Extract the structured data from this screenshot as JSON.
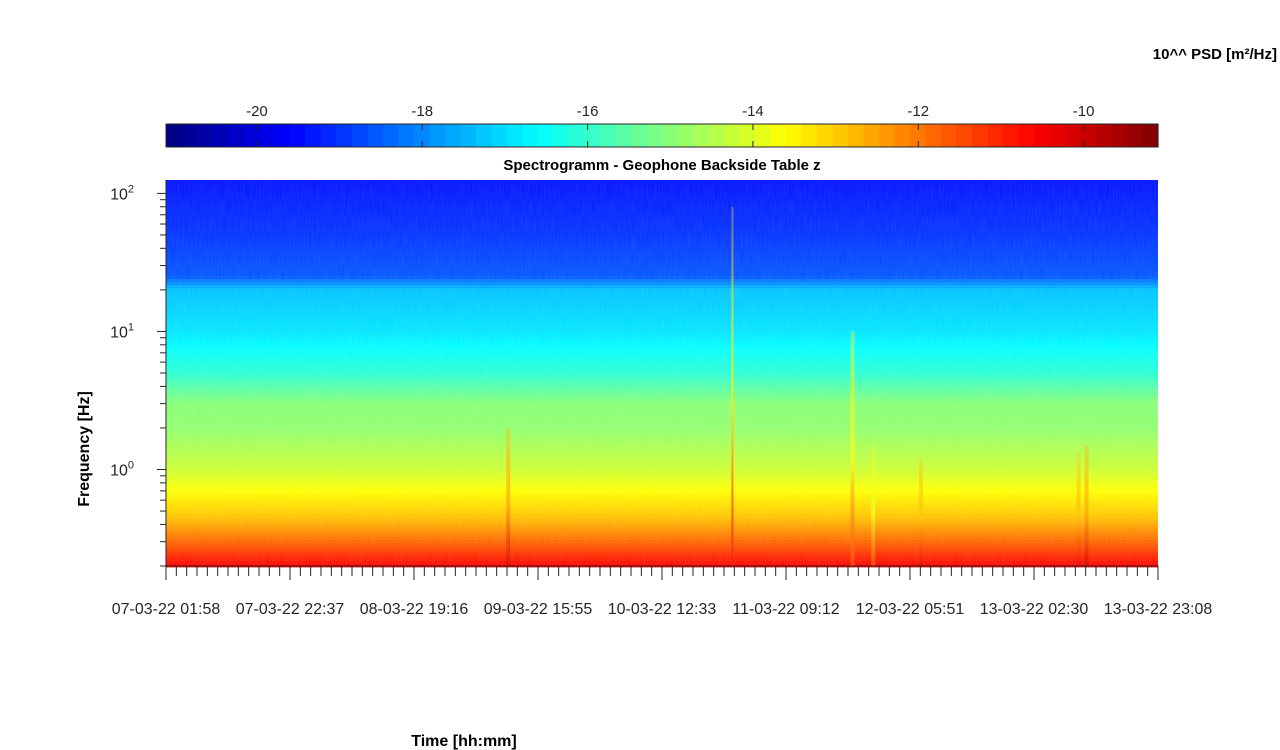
{
  "chart_data": {
    "type": "heatmap",
    "title": "Spectrogramm - Geophone Backside Table z",
    "xlabel": "Time [hh:mm]",
    "ylabel": "Frequency [Hz]",
    "colorbar_label": "10^^ PSD [m²/Hz]",
    "colormap": "jet",
    "colorbar_range": [
      -21.1,
      -9.1
    ],
    "colorbar_ticks": [
      "-20",
      "-18",
      "-16",
      "-14",
      "-12",
      "-10"
    ],
    "y_scale": "log",
    "ylim": [
      0.2,
      125
    ],
    "y_ticks": [
      {
        "base": "10",
        "exp": "2"
      },
      {
        "base": "10",
        "exp": "1"
      },
      {
        "base": "10",
        "exp": "0"
      }
    ],
    "x_ticks": [
      "07-03-22  01:58",
      "07-03-22  22:37",
      "08-03-22  19:16",
      "09-03-22  15:55",
      "10-03-22  12:33",
      "11-03-22  09:12",
      "12-03-22  05:51",
      "13-03-22  02:30",
      "13-03-22  23:08"
    ],
    "background_levels": [
      {
        "freq_hz": 0.2,
        "log_psd": -10.6
      },
      {
        "freq_hz": 0.3,
        "log_psd": -11.8
      },
      {
        "freq_hz": 0.45,
        "log_psd": -12.9
      },
      {
        "freq_hz": 0.7,
        "log_psd": -13.6
      },
      {
        "freq_hz": 1.0,
        "log_psd": -14.2
      },
      {
        "freq_hz": 2.0,
        "log_psd": -14.9
      },
      {
        "freq_hz": 3.0,
        "log_psd": -15.0
      },
      {
        "freq_hz": 5.0,
        "log_psd": -16.1
      },
      {
        "freq_hz": 10.0,
        "log_psd": -16.9
      },
      {
        "freq_hz": 20.0,
        "log_psd": -17.3
      },
      {
        "freq_hz": 25.0,
        "log_psd": -18.6
      },
      {
        "freq_hz": 50.0,
        "log_psd": -19.0
      },
      {
        "freq_hz": 125.0,
        "log_psd": -19.4
      }
    ],
    "transient_events": [
      {
        "time_fraction": 0.345,
        "top_freq_hz": 2.0,
        "peak_log_psd": -10.2
      },
      {
        "time_fraction": 0.571,
        "top_freq_hz": 80.0,
        "peak_log_psd": -10.8
      },
      {
        "time_fraction": 0.692,
        "top_freq_hz": 10.0,
        "peak_log_psd": -11.3
      },
      {
        "time_fraction": 0.713,
        "top_freq_hz": 1.5,
        "peak_log_psd": -11.3
      },
      {
        "time_fraction": 0.761,
        "top_freq_hz": 1.2,
        "peak_log_psd": -10.4
      },
      {
        "time_fraction": 0.92,
        "top_freq_hz": 1.3,
        "peak_log_psd": -10.4
      },
      {
        "time_fraction": 0.928,
        "top_freq_hz": 1.5,
        "peak_log_psd": -10.2
      }
    ]
  }
}
